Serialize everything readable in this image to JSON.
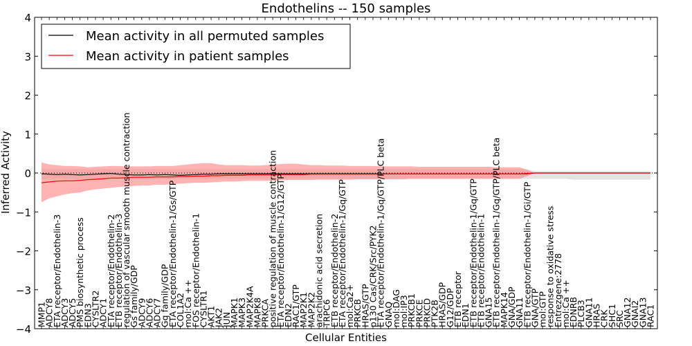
{
  "chart_data": {
    "type": "line",
    "title": "Endothelins -- 150 samples",
    "xlabel": "Cellular Entities",
    "ylabel": "Inferred Activity",
    "ylim": [
      -4,
      4
    ],
    "yticks": [
      -4,
      -3,
      -2,
      -1,
      0,
      1,
      2,
      3,
      4
    ],
    "ytick_labels": [
      "−4",
      "−3",
      "−2",
      "−1",
      "0",
      "1",
      "2",
      "3",
      "4"
    ],
    "grid": false,
    "legend_position": "top-left",
    "categories": [
      "MMP1",
      "ADCY8",
      "ETA receptor/Endothelin-3",
      "ADCY3",
      "ADCY5",
      "PMS biosynthetic process",
      "EDN3",
      "CYSLTR2",
      "ADCY1",
      "ETA receptor/Endothelin-2",
      "ETB receptor/Endothelin-3",
      "regulation of vascular smooth muscle contraction",
      "Gs family/GDP",
      "ADCY9",
      "ADCY6",
      "ADCY7",
      "Gq family/GDP",
      "ETA receptor/Endothelin-1/Gs/GTP",
      "COL1A2",
      "mol:Ca ++",
      "FOS receptor/Endothelin-1",
      "CYSLTR1",
      "AKT1",
      "JAK2",
      "JUN",
      "MAPK1",
      "MAPK3",
      "MAP2K4A",
      "MAPK8",
      "PRKCA",
      "positive regulation of muscle contraction",
      "ETA receptor/Endothelin-1/G12/GTP",
      "EDN2",
      "RAC1/GTP",
      "MAP2K1",
      "MAP2K2",
      "arachidonic acid secretion",
      "TRPC6",
      "ETB receptor/Endothelin-2",
      "ETA receptor/Endothelin-1/Gq/GTP",
      "mol:Ca2+",
      "PRKCB",
      "HRAS/GTP",
      "p130 Cas/CRK/Src/PYK2",
      "ETA receptor/Endothelin-1/Gq/GTP/PLC beta",
      "GNAQ",
      "mol:DAG",
      "mol:IP3",
      "PRKCB1",
      "PRKCE",
      "PRKCD",
      "PTK2B",
      "HRAS/GDP",
      "G12/GDP",
      "ETB receptor",
      "EDN1",
      "ETB receptor/Endothelin-1/Gq/GTP",
      "ETB receptor/Endothelin-1",
      "GNA15",
      "ETB receptor/Endothelin-1/Gq/GTP/PLC beta",
      "MAPK14",
      "GNA/GDP",
      "GNA11",
      "ETB receptor/Endothelin-1/Gi/GTP",
      "GNA/GTP",
      "mol:GTP",
      "response to oxidative stress",
      "Entrezgene:2778",
      "mol:Ca ++",
      "EDNRB",
      "PLCB3",
      "GNA11",
      "HRAS",
      "CRK",
      "SHC1",
      "SRC",
      "GNA12",
      "GNAI2",
      "GNA13",
      "RAC1"
    ],
    "x_labels_drawn": [
      "MMP1",
      "ADCY8",
      "ETA receptor/Endothelin-3",
      "ADCY3",
      "ADCY5",
      "PMS biosynthetic process",
      "EDN3",
      "CYSLTR2",
      "ADCY1",
      "ETA receptor/Endothelin-2",
      "ETB receptor/Endothelin-3",
      "regulation of vascular smooth muscle contraction",
      "Gs family/GDP",
      "ADCY9",
      "ADCY6",
      "ADCY7",
      "Gq family/GDP",
      "ETA receptor/Endothelin-1/Gs/GTP",
      "COL1A2",
      "mol:Ca ++",
      "FOS receptor/Endothelin-1",
      "CYSLTR1",
      "AKT1",
      "JAK2",
      "JUN",
      "MAPK1",
      "MAPK3",
      "MAP2K4A",
      "MAPK8",
      "PRKCA",
      "positive regulation of muscle contraction",
      "ETA receptor/Endothelin-1/G12/GTP",
      "EDN2",
      "RAC1/GTP",
      "MAP2K1",
      "MAP2K2",
      "arachidonic acid secretion",
      "TRPC6",
      "ETB receptor/Endothelin-2",
      "ETA receptor/Endothelin-1/Gq/GTP",
      "mol:Ca2+",
      "PRKCB",
      "HRAS/GTP",
      "p130 Cas/CRK/Src/PYK2",
      "ETA receptor/Endothelin-1/Gq/GTP/PLC beta",
      "GNAQ",
      "mol:DAG",
      "mol:IP3",
      "PRKCB1",
      "PRKCE",
      "PRKCD",
      "PTK2B",
      "HRAS/GDP",
      "G12/GDP",
      "ETB receptor",
      "EDN1",
      "ETB receptor/Endothelin-1/Gq/GTP",
      "ETB receptor/Endothelin-1",
      "GNA15",
      "ETB receptor/Endothelin-1/Gq/GTP/PLC beta",
      "MAPK14",
      "GNA/GDP",
      "GNA11",
      "ETB receptor/Endothelin-1/Gi/GTP",
      "GNA/GTP",
      "mol:GTP",
      "response to oxidative stress",
      "Entrezgene:2778",
      "mol:Ca ++",
      "EDNRB",
      "PLCB3",
      "GNA11",
      "HRAS",
      "CRK",
      "SHC1",
      "SRC",
      "GNA12",
      "GNAI2",
      "GNA13",
      "RAC1"
    ],
    "series": [
      {
        "name": "Mean activity in all permuted samples",
        "color": "#000000",
        "values": [
          -0.02,
          -0.03,
          -0.04,
          -0.03,
          -0.04,
          -0.05,
          -0.04,
          -0.03,
          -0.02,
          -0.01,
          -0.03,
          -0.04,
          -0.05,
          -0.05,
          -0.04,
          -0.05,
          -0.04,
          -0.05,
          -0.06,
          -0.05,
          -0.04,
          -0.03,
          -0.03,
          -0.02,
          -0.02,
          -0.02,
          -0.02,
          -0.02,
          -0.02,
          -0.02,
          -0.02,
          -0.02,
          -0.02,
          -0.02,
          -0.02,
          -0.02,
          -0.02,
          -0.02,
          -0.02,
          -0.02,
          -0.02,
          -0.02,
          -0.02,
          -0.02,
          -0.02,
          -0.02,
          -0.02,
          -0.02,
          -0.02,
          -0.02,
          -0.02,
          -0.02,
          -0.02,
          -0.02,
          -0.02,
          -0.02,
          -0.02,
          -0.02,
          -0.02,
          -0.02,
          -0.02,
          -0.02,
          -0.02,
          -0.02,
          0.0,
          0.0,
          0.0,
          0.0,
          0.0,
          0.0,
          0.0,
          0.0,
          0.0,
          0.0,
          0.0,
          0.0,
          0.0,
          0.0,
          0.0,
          0.0
        ],
        "band_lower": [
          -0.15,
          -0.15,
          -0.15,
          -0.15,
          -0.15,
          -0.15,
          -0.15,
          -0.15,
          -0.15,
          -0.15,
          -0.15,
          -0.15,
          -0.15,
          -0.15,
          -0.15,
          -0.15,
          -0.15,
          -0.15,
          -0.15,
          -0.15,
          -0.15,
          -0.15,
          -0.15,
          -0.15,
          -0.15,
          -0.15,
          -0.15,
          -0.15,
          -0.15,
          -0.15,
          -0.15,
          -0.15,
          -0.15,
          -0.15,
          -0.15,
          -0.15,
          -0.15,
          -0.15,
          -0.15,
          -0.15,
          -0.15,
          -0.15,
          -0.15,
          -0.15,
          -0.15,
          -0.15,
          -0.15,
          -0.15,
          -0.15,
          -0.15,
          -0.15,
          -0.15,
          -0.15,
          -0.15,
          -0.15,
          -0.15,
          -0.15,
          -0.15,
          -0.15,
          -0.15,
          -0.15,
          -0.15,
          -0.15,
          -0.15,
          -0.15,
          -0.15,
          -0.15,
          -0.15,
          -0.15,
          -0.17,
          -0.17,
          -0.17,
          -0.17,
          -0.17,
          -0.17,
          -0.17,
          -0.17,
          -0.17,
          -0.17,
          -0.17
        ],
        "band_upper": [
          0.1,
          0.1,
          0.1,
          0.1,
          0.1,
          0.1,
          0.1,
          0.1,
          0.1,
          0.1,
          0.1,
          0.1,
          0.1,
          0.1,
          0.1,
          0.1,
          0.1,
          0.1,
          0.1,
          0.1,
          0.1,
          0.1,
          0.1,
          0.1,
          0.1,
          0.1,
          0.1,
          0.1,
          0.1,
          0.1,
          0.1,
          0.1,
          0.1,
          0.1,
          0.1,
          0.1,
          0.1,
          0.1,
          0.1,
          0.1,
          0.1,
          0.1,
          0.1,
          0.1,
          0.1,
          0.1,
          0.1,
          0.1,
          0.1,
          0.1,
          0.1,
          0.1,
          0.1,
          0.1,
          0.1,
          0.1,
          0.1,
          0.1,
          0.1,
          0.1,
          0.1,
          0.1,
          0.1,
          0.1,
          0.05,
          0.05,
          0.05,
          0.05,
          0.05,
          0.05,
          0.05,
          0.05,
          0.05,
          0.05,
          0.05,
          0.05,
          0.05,
          0.05,
          0.05,
          0.05
        ],
        "band_color": "#cccccc"
      },
      {
        "name": "Mean activity in patient samples",
        "color": "#ff0000",
        "values": [
          -0.25,
          -0.23,
          -0.21,
          -0.2,
          -0.2,
          -0.19,
          -0.17,
          -0.16,
          -0.15,
          -0.13,
          -0.13,
          -0.12,
          -0.11,
          -0.11,
          -0.11,
          -0.1,
          -0.1,
          -0.1,
          -0.09,
          -0.09,
          -0.08,
          -0.08,
          -0.07,
          -0.07,
          -0.06,
          -0.06,
          -0.06,
          -0.05,
          -0.05,
          -0.05,
          -0.05,
          -0.04,
          -0.04,
          -0.04,
          -0.04,
          -0.03,
          -0.03,
          -0.03,
          -0.03,
          -0.03,
          -0.03,
          -0.03,
          -0.03,
          -0.03,
          -0.03,
          -0.02,
          -0.02,
          -0.02,
          -0.02,
          -0.02,
          -0.02,
          -0.02,
          -0.02,
          -0.02,
          -0.02,
          -0.02,
          -0.02,
          -0.02,
          -0.02,
          -0.02,
          -0.02,
          -0.02,
          -0.02,
          -0.01,
          0.0,
          0.0,
          0.0,
          0.0,
          0.0,
          0.0,
          0.0,
          0.0,
          0.0,
          0.0,
          0.0,
          0.0,
          0.0,
          0.0,
          0.0,
          0.0
        ],
        "band_lower": [
          -0.75,
          -0.65,
          -0.6,
          -0.55,
          -0.52,
          -0.5,
          -0.45,
          -0.42,
          -0.4,
          -0.38,
          -0.36,
          -0.35,
          -0.33,
          -0.32,
          -0.32,
          -0.3,
          -0.3,
          -0.28,
          -0.27,
          -0.26,
          -0.25,
          -0.25,
          -0.24,
          -0.23,
          -0.22,
          -0.22,
          -0.21,
          -0.2,
          -0.2,
          -0.2,
          -0.2,
          -0.19,
          -0.18,
          -0.18,
          -0.18,
          -0.18,
          -0.17,
          -0.17,
          -0.17,
          -0.17,
          -0.17,
          -0.16,
          -0.16,
          -0.16,
          -0.16,
          -0.16,
          -0.16,
          -0.16,
          -0.15,
          -0.15,
          -0.15,
          -0.15,
          -0.15,
          -0.15,
          -0.15,
          -0.15,
          -0.15,
          -0.15,
          -0.15,
          -0.15,
          -0.15,
          -0.15,
          -0.15,
          -0.08,
          0.0,
          0.0,
          0.0,
          0.0,
          0.0,
          0.0,
          0.0,
          0.0,
          0.0,
          0.0,
          0.0,
          0.0,
          0.0,
          0.0,
          0.0,
          0.0
        ],
        "band_upper": [
          0.27,
          0.22,
          0.2,
          0.18,
          0.18,
          0.17,
          0.15,
          0.16,
          0.17,
          0.18,
          0.18,
          0.17,
          0.17,
          0.17,
          0.17,
          0.18,
          0.18,
          0.18,
          0.2,
          0.22,
          0.24,
          0.25,
          0.25,
          0.22,
          0.2,
          0.2,
          0.2,
          0.19,
          0.19,
          0.2,
          0.22,
          0.23,
          0.24,
          0.24,
          0.22,
          0.2,
          0.2,
          0.19,
          0.19,
          0.19,
          0.18,
          0.18,
          0.18,
          0.18,
          0.17,
          0.17,
          0.17,
          0.17,
          0.17,
          0.16,
          0.16,
          0.16,
          0.16,
          0.16,
          0.16,
          0.16,
          0.16,
          0.16,
          0.16,
          0.15,
          0.15,
          0.15,
          0.15,
          0.08,
          0.0,
          0.0,
          0.0,
          0.0,
          0.0,
          0.0,
          0.0,
          0.0,
          0.0,
          0.0,
          0.0,
          0.0,
          0.0,
          0.0,
          0.0,
          0.0
        ],
        "band_color": "#ff8080"
      }
    ],
    "reference_line": {
      "y": 0,
      "style": "dotted"
    }
  }
}
